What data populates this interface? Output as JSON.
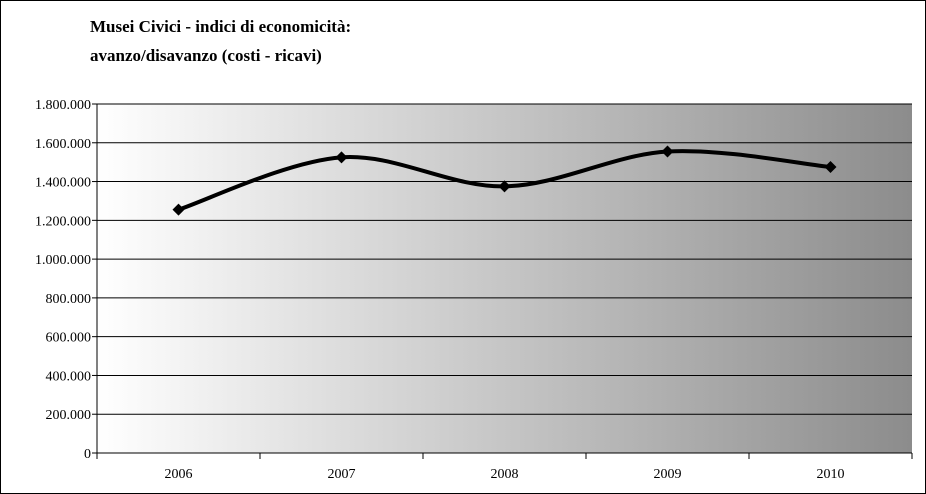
{
  "chart_data": {
    "type": "line",
    "title_line1": "Musei Civici - indici di economicità:",
    "title_line2": "avanzo/disavanzo (costi - ricavi)",
    "xlabel": "",
    "ylabel": "",
    "categories": [
      "2006",
      "2007",
      "2008",
      "2009",
      "2010"
    ],
    "series": [
      {
        "values": [
          1255000,
          1525000,
          1375000,
          1555000,
          1475000
        ]
      }
    ],
    "ylim": [
      0,
      1800000
    ],
    "ytick_values": [
      0,
      200000,
      400000,
      600000,
      800000,
      1000000,
      1200000,
      1400000,
      1600000,
      1800000
    ],
    "ytick_labels": [
      "0",
      "200.000",
      "400.000",
      "600.000",
      "800.000",
      "1.000.000",
      "1.200.000",
      "1.400.000",
      "1.600.000",
      "1.800.000"
    ],
    "grid": true,
    "smoothed": true,
    "marker": "diamond",
    "line_color": "#000000",
    "background_gradient": [
      "#ffffff",
      "#8c8c8c"
    ]
  }
}
